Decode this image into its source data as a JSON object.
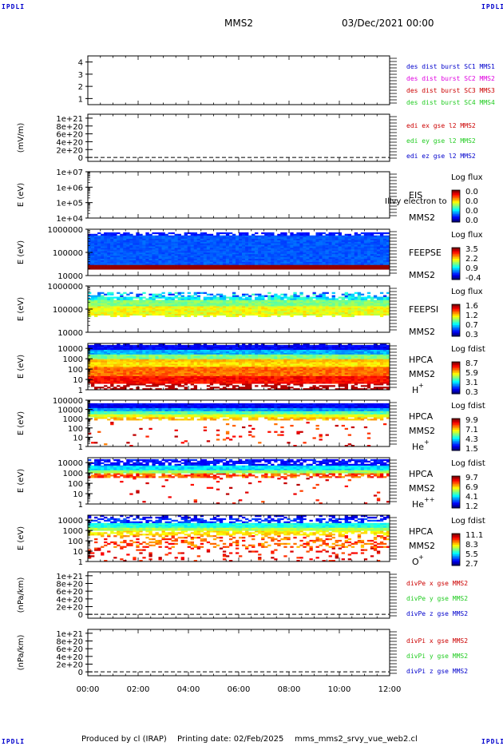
{
  "corner_logo": "IPDLI",
  "header": {
    "spacecraft": "MMS2",
    "datetime": "03/Dec/2021 00:00"
  },
  "footer": {
    "producer": "Produced by cl (IRAP)",
    "print_date": "Printing date: 02/Feb/2025",
    "filename": "mms_mms2_srvy_vue_web2.cl"
  },
  "colors": {
    "blue": "#0000cc",
    "magenta": "#e000e0",
    "red": "#cc0000",
    "green": "#22cc22"
  },
  "chart_data": [
    {
      "type": "line",
      "panel": "availability",
      "y_ticks": [
        "4",
        "3",
        "2",
        "1"
      ],
      "yticks_val": [
        4,
        3,
        2,
        1
      ],
      "ylim": [
        0.5,
        4.5
      ],
      "legend": [
        {
          "text": "des dist burst SC1 MMS1",
          "color": "#0000cc"
        },
        {
          "text": "des dist burst SC2 MMS2",
          "color": "#e000e0"
        },
        {
          "text": "des dist burst SC3 MMS3",
          "color": "#cc0000"
        },
        {
          "text": "des dist burst SC4 MMS4",
          "color": "#22cc22"
        }
      ]
    },
    {
      "type": "line",
      "panel": "edi",
      "ylabel": "(mV/m)",
      "y_ticks": [
        "1e+21",
        "8e+20",
        "6e+20",
        "4e+20",
        "2e+20",
        "0"
      ],
      "yticks_val": [
        1e+21,
        8e+20,
        6e+20,
        4e+20,
        2e+20,
        0
      ],
      "ylim": [
        -1e+20,
        1.1e+21
      ],
      "series": [
        {
          "name": "edi ex gse l2 MMS2",
          "color": "#cc0000",
          "values": [
            0,
            0
          ]
        },
        {
          "name": "edi ey gse l2 MMS2",
          "color": "#22cc22",
          "values": [
            0,
            0
          ]
        },
        {
          "name": "edi ez gse l2 MMS2",
          "color": "#0000cc",
          "values": [
            0,
            0
          ]
        }
      ],
      "dashed_zero": true
    },
    {
      "type": "heatmap",
      "panel": "eis",
      "ylabel": "E (eV)",
      "y_ticks": [
        "1e+07",
        "1e+06",
        "1e+05",
        "1e+04"
      ],
      "ylog": true,
      "ylim": [
        10000.0,
        10000000.0
      ],
      "instrument": "EIS",
      "spacecraft": "MMS2",
      "overlay_text": "Illvy electron to",
      "cbar_title": "Log flux",
      "cbar_ticks": [
        "0.0",
        "0.0",
        "0.0",
        "0.0"
      ],
      "empty": true
    },
    {
      "type": "heatmap",
      "panel": "feeps_e",
      "ylabel": "E (eV)",
      "y_ticks": [
        "1000000",
        "100000",
        "10000"
      ],
      "ylog": true,
      "ylim": [
        10000.0,
        1000000.0
      ],
      "instrument": "FEEPSE",
      "spacecraft": "MMS2",
      "cbar_title": "Log flux",
      "cbar_ticks": [
        "3.5",
        "2.2",
        "0.9",
        "-0.4"
      ],
      "cbar_range": [
        -0.4,
        3.5
      ]
    },
    {
      "type": "heatmap",
      "panel": "feeps_i",
      "ylabel": "E (eV)",
      "y_ticks": [
        "1000000",
        "100000",
        "10000"
      ],
      "ylog": true,
      "ylim": [
        10000.0,
        1000000.0
      ],
      "instrument": "FEEPSI",
      "spacecraft": "MMS2",
      "cbar_title": "Log flux",
      "cbar_ticks": [
        "1.6",
        "1.2",
        "0.7",
        "0.3"
      ],
      "cbar_range": [
        0.3,
        1.6
      ]
    },
    {
      "type": "heatmap",
      "panel": "hpca_h",
      "ylabel": "E (eV)",
      "y_ticks": [
        "10000",
        "1000",
        "100",
        "10",
        "1"
      ],
      "ylog": true,
      "ylim": [
        1,
        30000.0
      ],
      "instrument": "HPCA",
      "spacecraft": "MMS2",
      "species": "H",
      "species_sup": "+",
      "cbar_title": "Log fdist",
      "cbar_ticks": [
        "8.7",
        "5.9",
        "3.1",
        "0.3"
      ],
      "cbar_range": [
        0.3,
        8.7
      ]
    },
    {
      "type": "heatmap",
      "panel": "hpca_he1",
      "ylabel": "E (eV)",
      "y_ticks": [
        "100000",
        "10000",
        "1000",
        "100",
        "10",
        "1"
      ],
      "ylog": true,
      "ylim": [
        1,
        100000.0
      ],
      "instrument": "HPCA",
      "spacecraft": "MMS2",
      "species": "He",
      "species_sup": "+",
      "cbar_title": "Log fdist",
      "cbar_ticks": [
        "9.9",
        "7.1",
        "4.3",
        "1.5"
      ],
      "cbar_range": [
        1.5,
        9.9
      ]
    },
    {
      "type": "heatmap",
      "panel": "hpca_he2",
      "ylabel": "E (eV)",
      "y_ticks": [
        "10000",
        "1000",
        "100",
        "10",
        "1"
      ],
      "ylog": true,
      "ylim": [
        1,
        30000.0
      ],
      "instrument": "HPCA",
      "spacecraft": "MMS2",
      "species": "He",
      "species_sup": "++",
      "cbar_title": "Log fdist",
      "cbar_ticks": [
        "9.7",
        "6.9",
        "4.1",
        "1.2"
      ],
      "cbar_range": [
        1.2,
        9.7
      ]
    },
    {
      "type": "heatmap",
      "panel": "hpca_o",
      "ylabel": "E (eV)",
      "y_ticks": [
        "10000",
        "1000",
        "100",
        "10",
        "1"
      ],
      "ylog": true,
      "ylim": [
        1,
        30000.0
      ],
      "instrument": "HPCA",
      "spacecraft": "MMS2",
      "species": "O",
      "species_sup": "+",
      "cbar_title": "Log fdist",
      "cbar_ticks": [
        "11.1",
        "8.3",
        "5.5",
        "2.7"
      ],
      "cbar_range": [
        2.7,
        11.1
      ]
    },
    {
      "type": "line",
      "panel": "divpe",
      "ylabel": "(nPa/km)",
      "y_ticks": [
        "1e+21",
        "8e+20",
        "6e+20",
        "4e+20",
        "2e+20",
        "0"
      ],
      "yticks_val": [
        1e+21,
        8e+20,
        6e+20,
        4e+20,
        2e+20,
        0
      ],
      "ylim": [
        -1e+20,
        1.1e+21
      ],
      "series": [
        {
          "name": "divPe x gse MMS2",
          "color": "#cc0000",
          "values": [
            0,
            0
          ]
        },
        {
          "name": "divPe y gse MMS2",
          "color": "#22cc22",
          "values": [
            0,
            0
          ]
        },
        {
          "name": "divPe z gse MMS2",
          "color": "#0000cc",
          "values": [
            0,
            0
          ]
        }
      ],
      "dashed_zero": true
    },
    {
      "type": "line",
      "panel": "divpi",
      "ylabel": "(nPa/km)",
      "y_ticks": [
        "1e+21",
        "8e+20",
        "6e+20",
        "4e+20",
        "2e+20",
        "0"
      ],
      "yticks_val": [
        1e+21,
        8e+20,
        6e+20,
        4e+20,
        2e+20,
        0
      ],
      "ylim": [
        -1e+20,
        1.1e+21
      ],
      "series": [
        {
          "name": "divPi x gse MMS2",
          "color": "#cc0000",
          "values": [
            0,
            0
          ]
        },
        {
          "name": "divPi y gse MMS2",
          "color": "#22cc22",
          "values": [
            0,
            0
          ]
        },
        {
          "name": "divPi z gse MMS2",
          "color": "#0000cc",
          "values": [
            0,
            0
          ]
        }
      ],
      "dashed_zero": true
    }
  ],
  "x_axis": {
    "ticks": [
      "00:00",
      "02:00",
      "04:00",
      "06:00",
      "08:00",
      "10:00",
      "12:00"
    ]
  }
}
